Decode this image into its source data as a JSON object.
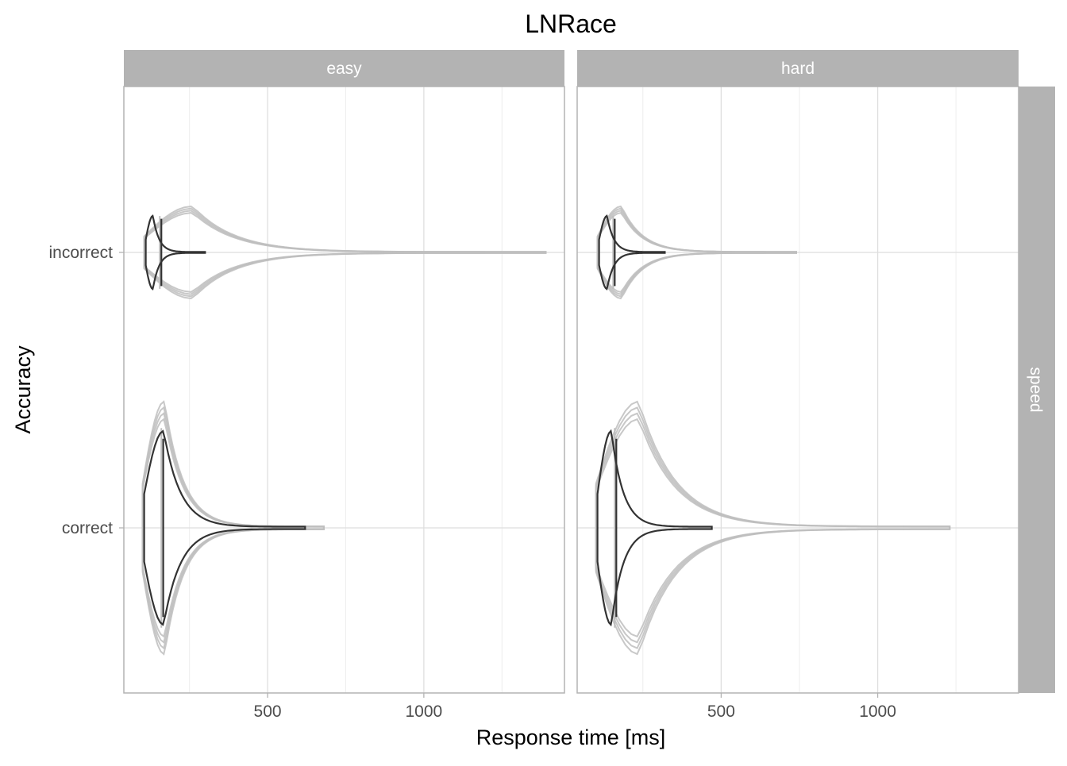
{
  "chart_data": {
    "type": "violin",
    "title": "LNRace",
    "xlabel": "Response time [ms]",
    "ylabel": "Accuracy",
    "xlim": [
      40,
      1450
    ],
    "x_ticks": [
      500,
      1000
    ],
    "y_categories": [
      "correct",
      "incorrect"
    ],
    "facet_columns": [
      "easy",
      "hard"
    ],
    "facet_rows": [
      "speed"
    ],
    "colors": {
      "observed": "#333333",
      "predicted": "#bebebe",
      "strip": "#b3b3b3"
    },
    "panels": [
      {
        "column": "easy",
        "row": "speed",
        "violins": [
          {
            "accuracy": "correct",
            "observed": {
              "min": 105,
              "median": 166,
              "max": 620
            },
            "predicted": {
              "min": 100,
              "median": 160,
              "max": 680
            }
          },
          {
            "accuracy": "incorrect",
            "observed": {
              "min": 110,
              "median": 160,
              "max": 300
            },
            "predicted": {
              "min": 105,
              "median": 155,
              "max": 1390
            }
          }
        ]
      },
      {
        "column": "hard",
        "row": "speed",
        "violins": [
          {
            "accuracy": "correct",
            "observed": {
              "min": 105,
              "median": 165,
              "max": 470
            },
            "predicted": {
              "min": 100,
              "median": 160,
              "max": 1230
            }
          },
          {
            "accuracy": "incorrect",
            "observed": {
              "min": 110,
              "median": 160,
              "max": 320
            },
            "predicted": {
              "min": 105,
              "median": 155,
              "max": 740
            }
          }
        ]
      }
    ]
  }
}
